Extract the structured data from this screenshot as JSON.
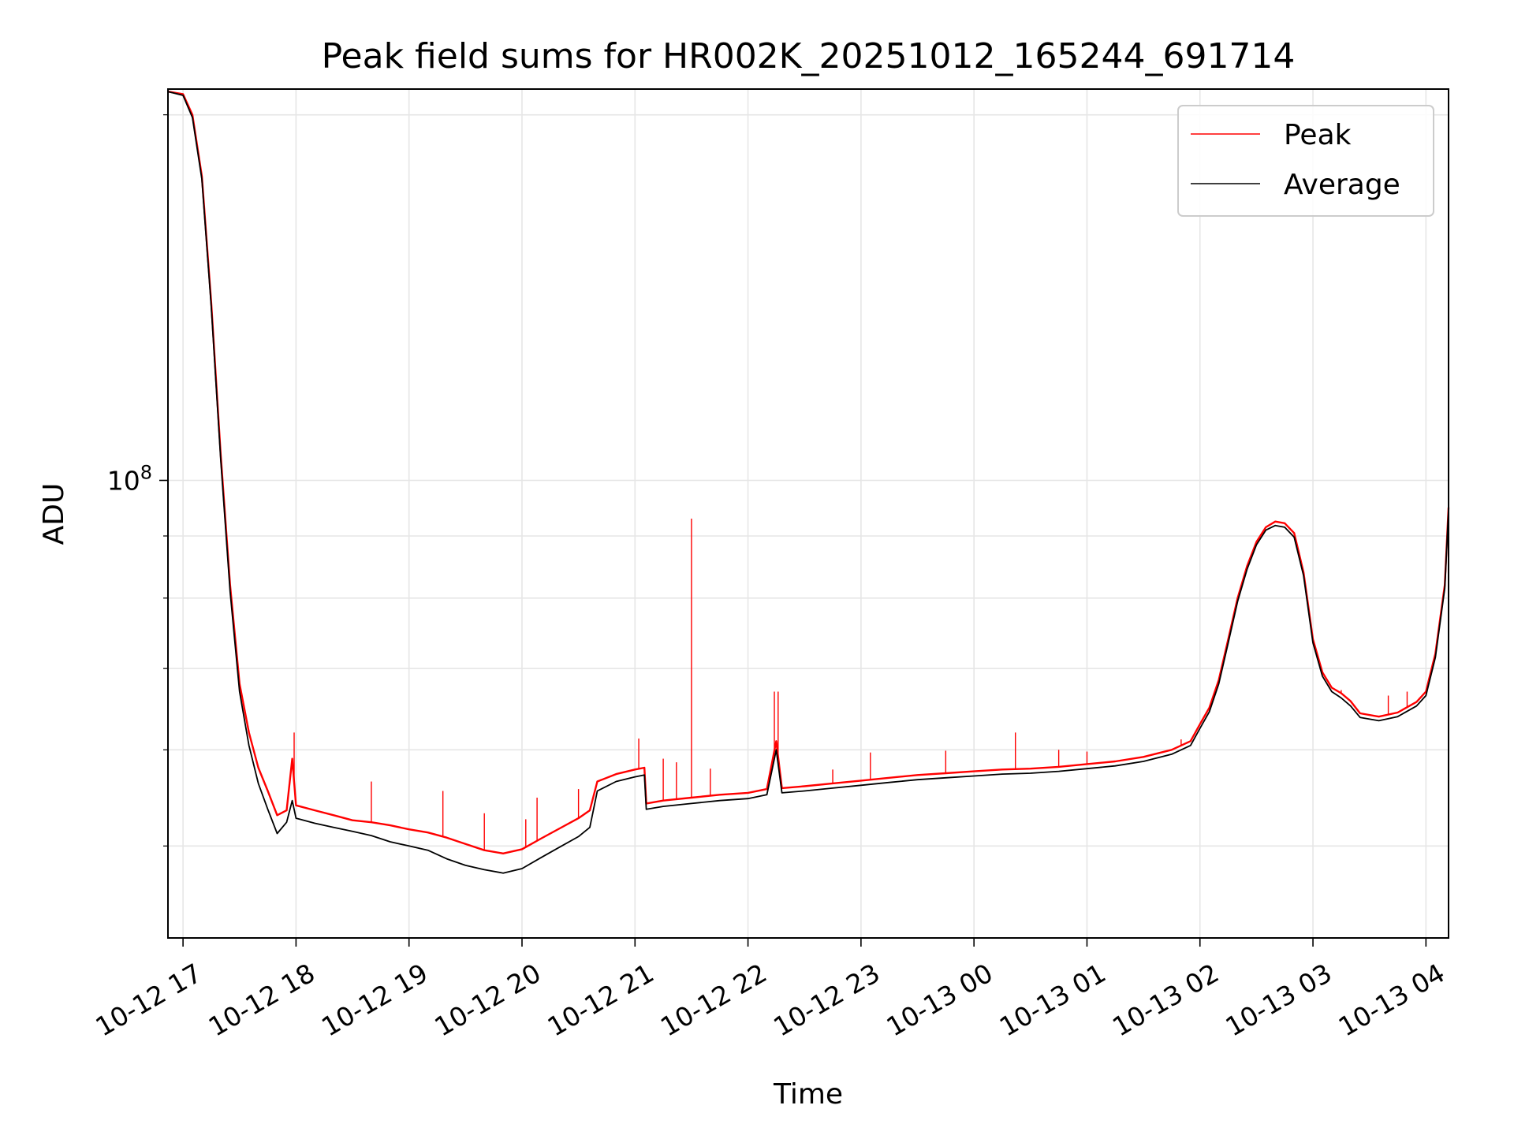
{
  "chart_data": {
    "type": "line",
    "title": "Peak field sums for HR002K_20251012_165244_691714",
    "xlabel": "Time",
    "ylabel": "ADU",
    "y_scale": "log",
    "grid": true,
    "legend_position": "top-right",
    "x_ticks": [
      "10-12 17",
      "10-12 18",
      "10-12 19",
      "10-12 20",
      "10-12 21",
      "10-12 22",
      "10-12 23",
      "10-13 00",
      "10-13 01",
      "10-13 02",
      "10-13 03",
      "10-13 04"
    ],
    "y_tick_label": {
      "base": "10",
      "exponent": "8"
    },
    "x_range": [
      "2025-10-12 16:52",
      "2025-10-13 04:12"
    ],
    "y_range": [
      42000000,
      210000000
    ],
    "series": [
      {
        "name": "Peak",
        "color": "#ff0000",
        "points": [
          [
            "2025-10-12 16:52",
            209000000
          ],
          [
            "2025-10-12 17:00",
            208000000
          ],
          [
            "2025-10-12 17:05",
            200000000
          ],
          [
            "2025-10-12 17:10",
            178000000
          ],
          [
            "2025-10-12 17:15",
            140000000
          ],
          [
            "2025-10-12 17:20",
            105000000
          ],
          [
            "2025-10-12 17:25",
            82000000
          ],
          [
            "2025-10-12 17:30",
            68000000
          ],
          [
            "2025-10-12 17:35",
            62000000
          ],
          [
            "2025-10-12 17:40",
            58000000
          ],
          [
            "2025-10-12 17:45",
            55500000
          ],
          [
            "2025-10-12 17:50",
            53000000
          ],
          [
            "2025-10-12 17:55",
            53500000
          ],
          [
            "2025-10-12 17:58",
            59000000
          ],
          [
            "2025-10-12 18:00",
            54000000
          ],
          [
            "2025-10-12 18:10",
            53500000
          ],
          [
            "2025-10-12 18:20",
            53000000
          ],
          [
            "2025-10-12 18:30",
            52500000
          ],
          [
            "2025-10-12 18:40",
            52300000
          ],
          [
            "2025-10-12 18:50",
            52000000
          ],
          [
            "2025-10-12 19:00",
            51600000
          ],
          [
            "2025-10-12 19:10",
            51300000
          ],
          [
            "2025-10-12 19:20",
            50800000
          ],
          [
            "2025-10-12 19:30",
            50200000
          ],
          [
            "2025-10-12 19:40",
            49600000
          ],
          [
            "2025-10-12 19:50",
            49300000
          ],
          [
            "2025-10-12 20:00",
            49700000
          ],
          [
            "2025-10-12 20:10",
            50700000
          ],
          [
            "2025-10-12 20:20",
            51700000
          ],
          [
            "2025-10-12 20:30",
            52700000
          ],
          [
            "2025-10-12 20:36",
            53500000
          ],
          [
            "2025-10-12 20:40",
            56500000
          ],
          [
            "2025-10-12 20:50",
            57300000
          ],
          [
            "2025-10-12 21:00",
            57800000
          ],
          [
            "2025-10-12 21:05",
            58000000
          ],
          [
            "2025-10-12 21:06",
            54200000
          ],
          [
            "2025-10-12 21:15",
            54500000
          ],
          [
            "2025-10-12 21:30",
            54800000
          ],
          [
            "2025-10-12 21:45",
            55100000
          ],
          [
            "2025-10-12 22:00",
            55300000
          ],
          [
            "2025-10-12 22:10",
            55700000
          ],
          [
            "2025-10-12 22:15",
            61000000
          ],
          [
            "2025-10-12 22:18",
            55800000
          ],
          [
            "2025-10-12 22:30",
            56000000
          ],
          [
            "2025-10-12 22:45",
            56300000
          ],
          [
            "2025-10-12 23:00",
            56600000
          ],
          [
            "2025-10-12 23:15",
            56900000
          ],
          [
            "2025-10-12 23:30",
            57200000
          ],
          [
            "2025-10-12 23:45",
            57400000
          ],
          [
            "2025-10-13 00:00",
            57600000
          ],
          [
            "2025-10-13 00:15",
            57800000
          ],
          [
            "2025-10-13 00:30",
            57900000
          ],
          [
            "2025-10-13 00:45",
            58100000
          ],
          [
            "2025-10-13 01:00",
            58400000
          ],
          [
            "2025-10-13 01:15",
            58700000
          ],
          [
            "2025-10-13 01:30",
            59200000
          ],
          [
            "2025-10-13 01:45",
            60000000
          ],
          [
            "2025-10-13 01:55",
            61000000
          ],
          [
            "2025-10-13 02:00",
            63000000
          ],
          [
            "2025-10-13 02:05",
            65000000
          ],
          [
            "2025-10-13 02:10",
            68500000
          ],
          [
            "2025-10-13 02:15",
            74000000
          ],
          [
            "2025-10-13 02:20",
            80000000
          ],
          [
            "2025-10-13 02:25",
            85000000
          ],
          [
            "2025-10-13 02:30",
            89000000
          ],
          [
            "2025-10-13 02:35",
            91500000
          ],
          [
            "2025-10-13 02:40",
            92500000
          ],
          [
            "2025-10-13 02:45",
            92200000
          ],
          [
            "2025-10-13 02:50",
            90500000
          ],
          [
            "2025-10-13 02:55",
            84000000
          ],
          [
            "2025-10-13 03:00",
            74000000
          ],
          [
            "2025-10-13 03:05",
            69500000
          ],
          [
            "2025-10-13 03:10",
            67500000
          ],
          [
            "2025-10-13 03:15",
            66800000
          ],
          [
            "2025-10-13 03:20",
            65800000
          ],
          [
            "2025-10-13 03:25",
            64300000
          ],
          [
            "2025-10-13 03:35",
            63900000
          ],
          [
            "2025-10-13 03:45",
            64400000
          ],
          [
            "2025-10-13 03:55",
            65700000
          ],
          [
            "2025-10-13 04:00",
            67000000
          ],
          [
            "2025-10-13 04:05",
            72000000
          ],
          [
            "2025-10-13 04:10",
            82000000
          ],
          [
            "2025-10-13 04:12",
            95000000
          ]
        ],
        "spikes": [
          [
            "2025-10-12 17:59",
            62000000
          ],
          [
            "2025-10-12 18:40",
            56500000
          ],
          [
            "2025-10-12 19:18",
            55500000
          ],
          [
            "2025-10-12 19:40",
            53200000
          ],
          [
            "2025-10-12 20:02",
            52600000
          ],
          [
            "2025-10-12 20:08",
            54800000
          ],
          [
            "2025-10-12 20:30",
            55700000
          ],
          [
            "2025-10-12 21:02",
            61300000
          ],
          [
            "2025-10-12 21:15",
            59000000
          ],
          [
            "2025-10-12 21:22",
            58600000
          ],
          [
            "2025-10-12 21:30",
            93000000
          ],
          [
            "2025-10-12 21:40",
            57900000
          ],
          [
            "2025-10-12 22:14",
            67000000
          ],
          [
            "2025-10-12 22:16",
            67000000
          ],
          [
            "2025-10-12 22:45",
            57800000
          ],
          [
            "2025-10-12 23:05",
            59700000
          ],
          [
            "2025-10-12 23:45",
            59900000
          ],
          [
            "2025-10-13 00:22",
            62000000
          ],
          [
            "2025-10-13 00:45",
            60000000
          ],
          [
            "2025-10-13 01:00",
            59800000
          ],
          [
            "2025-10-13 01:50",
            61200000
          ],
          [
            "2025-10-13 03:15",
            67200000
          ],
          [
            "2025-10-13 03:40",
            66500000
          ],
          [
            "2025-10-13 03:50",
            67000000
          ]
        ]
      },
      {
        "name": "Average",
        "color": "#000000",
        "points": [
          [
            "2025-10-12 16:52",
            209000000
          ],
          [
            "2025-10-12 17:00",
            207500000
          ],
          [
            "2025-10-12 17:05",
            199000000
          ],
          [
            "2025-10-12 17:10",
            177000000
          ],
          [
            "2025-10-12 17:15",
            139000000
          ],
          [
            "2025-10-12 17:20",
            104000000
          ],
          [
            "2025-10-12 17:25",
            81000000
          ],
          [
            "2025-10-12 17:30",
            67000000
          ],
          [
            "2025-10-12 17:35",
            60500000
          ],
          [
            "2025-10-12 17:40",
            56300000
          ],
          [
            "2025-10-12 17:45",
            53600000
          ],
          [
            "2025-10-12 17:50",
            51200000
          ],
          [
            "2025-10-12 17:55",
            52300000
          ],
          [
            "2025-10-12 17:58",
            54500000
          ],
          [
            "2025-10-12 18:00",
            52700000
          ],
          [
            "2025-10-12 18:10",
            52200000
          ],
          [
            "2025-10-12 18:20",
            51800000
          ],
          [
            "2025-10-12 18:30",
            51400000
          ],
          [
            "2025-10-12 18:40",
            51000000
          ],
          [
            "2025-10-12 18:50",
            50400000
          ],
          [
            "2025-10-12 19:00",
            50000000
          ],
          [
            "2025-10-12 19:10",
            49600000
          ],
          [
            "2025-10-12 19:20",
            48800000
          ],
          [
            "2025-10-12 19:30",
            48200000
          ],
          [
            "2025-10-12 19:40",
            47800000
          ],
          [
            "2025-10-12 19:50",
            47500000
          ],
          [
            "2025-10-12 20:00",
            47900000
          ],
          [
            "2025-10-12 20:10",
            48900000
          ],
          [
            "2025-10-12 20:20",
            49900000
          ],
          [
            "2025-10-12 20:30",
            50900000
          ],
          [
            "2025-10-12 20:36",
            51800000
          ],
          [
            "2025-10-12 20:40",
            55500000
          ],
          [
            "2025-10-12 20:50",
            56500000
          ],
          [
            "2025-10-12 21:00",
            57000000
          ],
          [
            "2025-10-12 21:05",
            57200000
          ],
          [
            "2025-10-12 21:06",
            53600000
          ],
          [
            "2025-10-12 21:15",
            53900000
          ],
          [
            "2025-10-12 21:30",
            54200000
          ],
          [
            "2025-10-12 21:45",
            54500000
          ],
          [
            "2025-10-12 22:00",
            54700000
          ],
          [
            "2025-10-12 22:10",
            55100000
          ],
          [
            "2025-10-12 22:15",
            60000000
          ],
          [
            "2025-10-12 22:18",
            55300000
          ],
          [
            "2025-10-12 22:30",
            55500000
          ],
          [
            "2025-10-12 22:45",
            55800000
          ],
          [
            "2025-10-12 23:00",
            56100000
          ],
          [
            "2025-10-12 23:15",
            56400000
          ],
          [
            "2025-10-12 23:30",
            56700000
          ],
          [
            "2025-10-12 23:45",
            56900000
          ],
          [
            "2025-10-13 00:00",
            57100000
          ],
          [
            "2025-10-13 00:15",
            57300000
          ],
          [
            "2025-10-13 00:30",
            57400000
          ],
          [
            "2025-10-13 00:45",
            57600000
          ],
          [
            "2025-10-13 01:00",
            57900000
          ],
          [
            "2025-10-13 01:15",
            58200000
          ],
          [
            "2025-10-13 01:30",
            58700000
          ],
          [
            "2025-10-13 01:45",
            59500000
          ],
          [
            "2025-10-13 01:55",
            60500000
          ],
          [
            "2025-10-13 02:00",
            62500000
          ],
          [
            "2025-10-13 02:05",
            64500000
          ],
          [
            "2025-10-13 02:10",
            68000000
          ],
          [
            "2025-10-13 02:15",
            73500000
          ],
          [
            "2025-10-13 02:20",
            79500000
          ],
          [
            "2025-10-13 02:25",
            84500000
          ],
          [
            "2025-10-13 02:30",
            88500000
          ],
          [
            "2025-10-13 02:35",
            91000000
          ],
          [
            "2025-10-13 02:40",
            91800000
          ],
          [
            "2025-10-13 02:45",
            91500000
          ],
          [
            "2025-10-13 02:50",
            89800000
          ],
          [
            "2025-10-13 02:55",
            83500000
          ],
          [
            "2025-10-13 03:00",
            73500000
          ],
          [
            "2025-10-13 03:05",
            69000000
          ],
          [
            "2025-10-13 03:10",
            67000000
          ],
          [
            "2025-10-13 03:15",
            66200000
          ],
          [
            "2025-10-13 03:20",
            65200000
          ],
          [
            "2025-10-13 03:25",
            63800000
          ],
          [
            "2025-10-13 03:35",
            63400000
          ],
          [
            "2025-10-13 03:45",
            63900000
          ],
          [
            "2025-10-13 03:55",
            65200000
          ],
          [
            "2025-10-13 04:00",
            66500000
          ],
          [
            "2025-10-13 04:05",
            71500000
          ],
          [
            "2025-10-13 04:10",
            81500000
          ],
          [
            "2025-10-13 04:12",
            94500000
          ]
        ]
      }
    ]
  }
}
